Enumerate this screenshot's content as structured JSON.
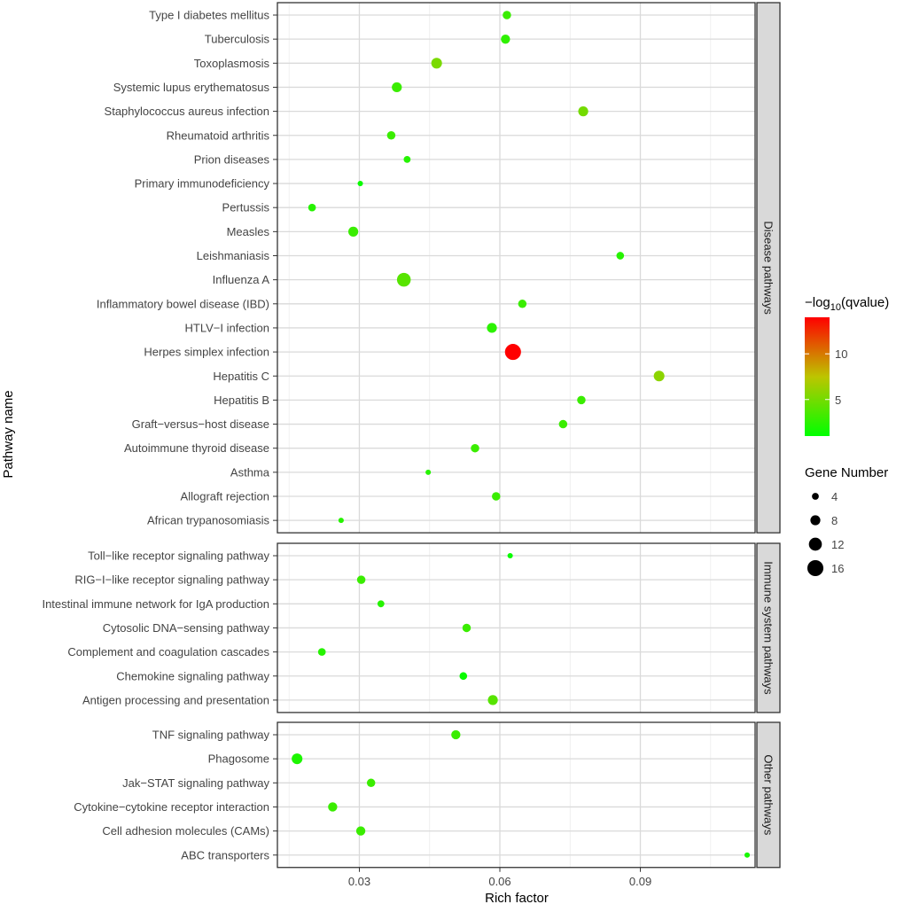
{
  "chart_data": {
    "type": "scatter",
    "xlabel": "Rich factor",
    "ylabel": "Pathway name",
    "xlim": [
      0.0125,
      0.1145
    ],
    "xticks": [
      0.03,
      0.06,
      0.09
    ],
    "xtick_labels": [
      "0.03",
      "0.06",
      "0.09"
    ],
    "grid": true,
    "color_legend": {
      "title_prefix": "−log",
      "title_sub": "10",
      "title_suffix": "(qvalue)",
      "min": 1,
      "max": 14,
      "low_color": "#00ff00",
      "high_color": "#ff0000",
      "ticks": [
        5,
        10
      ],
      "tick_labels": [
        "5",
        "10"
      ]
    },
    "size_legend": {
      "title": "Gene Number",
      "values": [
        4,
        8,
        12,
        16
      ],
      "labels": [
        "4",
        "8",
        "12",
        "16"
      ]
    },
    "panels": [
      {
        "name": "Disease pathways",
        "points": [
          {
            "pathway": "Type I diabetes mellitus",
            "x": 0.0615,
            "genes": 6,
            "q": 3.0
          },
          {
            "pathway": "Tuberculosis",
            "x": 0.0612,
            "genes": 7,
            "q": 2.6
          },
          {
            "pathway": "Toxoplasmosis",
            "x": 0.0465,
            "genes": 9,
            "q": 5.2
          },
          {
            "pathway": "Systemic lupus erythematosus",
            "x": 0.038,
            "genes": 8,
            "q": 3.0
          },
          {
            "pathway": "Staphylococcus aureus infection",
            "x": 0.0778,
            "genes": 8,
            "q": 5.0
          },
          {
            "pathway": "Rheumatoid arthritis",
            "x": 0.0368,
            "genes": 6,
            "q": 3.0
          },
          {
            "pathway": "Prion diseases",
            "x": 0.0402,
            "genes": 4,
            "q": 2.3
          },
          {
            "pathway": "Primary immunodeficiency",
            "x": 0.0302,
            "genes": 2,
            "q": 1.3
          },
          {
            "pathway": "Pertussis",
            "x": 0.0199,
            "genes": 5,
            "q": 2.3
          },
          {
            "pathway": "Measles",
            "x": 0.0287,
            "genes": 8,
            "q": 3.0
          },
          {
            "pathway": "Leishmaniasis",
            "x": 0.0857,
            "genes": 5,
            "q": 2.3
          },
          {
            "pathway": "Influenza A",
            "x": 0.0395,
            "genes": 13,
            "q": 4.0
          },
          {
            "pathway": "Inflammatory bowel disease (IBD)",
            "x": 0.0648,
            "genes": 6,
            "q": 3.0
          },
          {
            "pathway": "HTLV−I infection",
            "x": 0.0583,
            "genes": 8,
            "q": 2.5
          },
          {
            "pathway": "Herpes simplex infection",
            "x": 0.0628,
            "genes": 16,
            "q": 14.0
          },
          {
            "pathway": "Hepatitis C",
            "x": 0.094,
            "genes": 9,
            "q": 5.8
          },
          {
            "pathway": "Hepatitis B",
            "x": 0.0774,
            "genes": 6,
            "q": 3.0
          },
          {
            "pathway": "Graft−versus−host disease",
            "x": 0.0735,
            "genes": 6,
            "q": 3.0
          },
          {
            "pathway": "Autoimmune thyroid disease",
            "x": 0.0547,
            "genes": 6,
            "q": 3.0
          },
          {
            "pathway": "Asthma",
            "x": 0.0447,
            "genes": 2,
            "q": 2.3
          },
          {
            "pathway": "Allograft rejection",
            "x": 0.0592,
            "genes": 6,
            "q": 3.0
          },
          {
            "pathway": "African trypanosomiasis",
            "x": 0.0261,
            "genes": 2,
            "q": 2.3
          }
        ]
      },
      {
        "name": "Immune system pathways",
        "points": [
          {
            "pathway": "Toll−like receptor signaling pathway",
            "x": 0.0622,
            "genes": 2,
            "q": 1.3
          },
          {
            "pathway": "RIG−I−like receptor signaling pathway",
            "x": 0.0304,
            "genes": 6,
            "q": 3.0
          },
          {
            "pathway": "Intestinal immune network for IgA production",
            "x": 0.0346,
            "genes": 4,
            "q": 2.3
          },
          {
            "pathway": "Cytosolic DNA−sensing pathway",
            "x": 0.0529,
            "genes": 6,
            "q": 3.0
          },
          {
            "pathway": "Complement and coagulation cascades",
            "x": 0.022,
            "genes": 5,
            "q": 2.3
          },
          {
            "pathway": "Chemokine signaling pathway",
            "x": 0.0522,
            "genes": 5,
            "q": 1.3
          },
          {
            "pathway": "Antigen processing and presentation",
            "x": 0.0585,
            "genes": 8,
            "q": 4.0
          }
        ]
      },
      {
        "name": "Other pathways",
        "points": [
          {
            "pathway": "TNF signaling pathway",
            "x": 0.0506,
            "genes": 7,
            "q": 3.0
          },
          {
            "pathway": "Phagosome",
            "x": 0.0167,
            "genes": 9,
            "q": 2.0
          },
          {
            "pathway": "Jak−STAT signaling pathway",
            "x": 0.0325,
            "genes": 6,
            "q": 3.0
          },
          {
            "pathway": "Cytokine−cytokine receptor interaction",
            "x": 0.0243,
            "genes": 7,
            "q": 3.0
          },
          {
            "pathway": "Cell adhesion molecules (CAMs)",
            "x": 0.0303,
            "genes": 7,
            "q": 3.0
          },
          {
            "pathway": "ABC transporters",
            "x": 0.1128,
            "genes": 2,
            "q": 1.8
          }
        ]
      }
    ]
  }
}
